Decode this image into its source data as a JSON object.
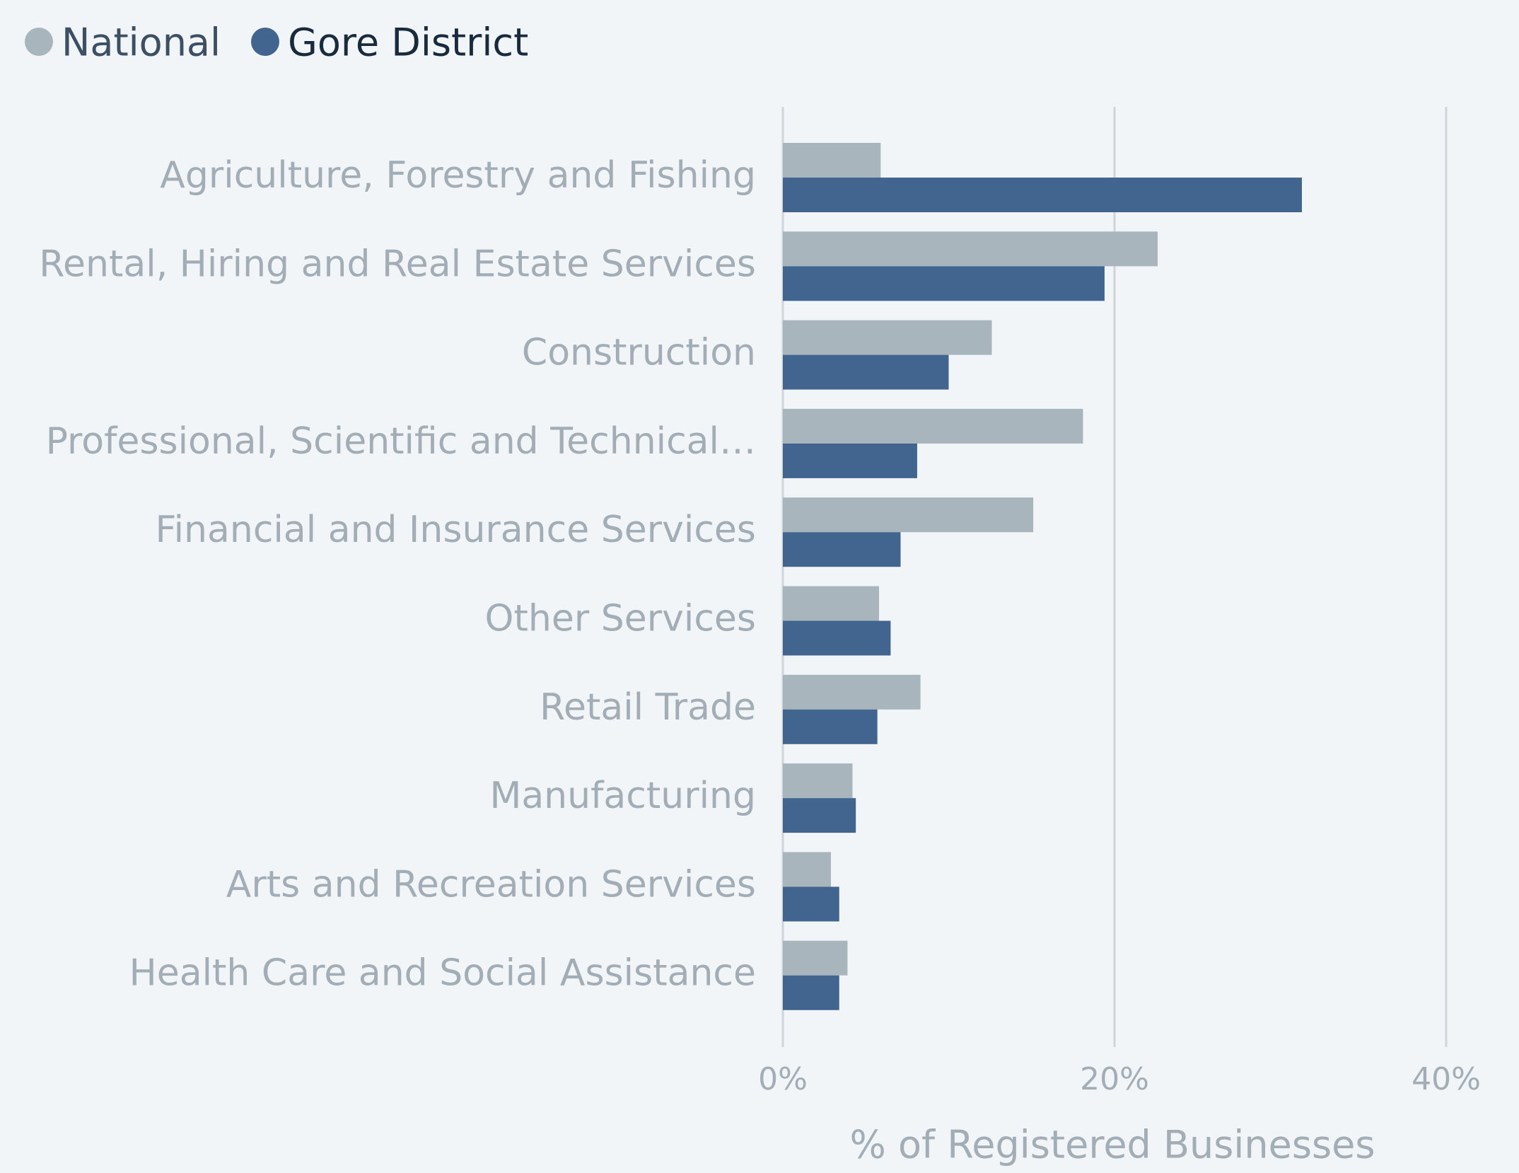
{
  "chart_data": {
    "type": "hbar",
    "categories": [
      "Agriculture, Forestry and Fishing",
      "Rental, Hiring and Real Estate Services",
      "Construction",
      "Professional, Scientific and Technical…",
      "Financial and Insurance Services",
      "Other Services",
      "Retail Trade",
      "Manufacturing",
      "Arts and Recreation Services",
      "Health Care and Social Assistance"
    ],
    "series": [
      {
        "name": "National",
        "color": "#a8b5bc",
        "values": [
          5.9,
          22.6,
          12.6,
          18.1,
          15.1,
          5.8,
          8.3,
          4.2,
          2.9,
          3.9
        ]
      },
      {
        "name": "Gore District",
        "color": "#41658f",
        "values": [
          31.3,
          19.4,
          10.0,
          8.1,
          7.1,
          6.5,
          5.7,
          4.4,
          3.4,
          3.4
        ]
      }
    ],
    "xlabel": "% of Registered Businesses",
    "xlim": [
      0,
      40
    ],
    "xticks": [
      {
        "value": 0,
        "label": "0%"
      },
      {
        "value": 20,
        "label": "20%"
      },
      {
        "value": 40,
        "label": "40%"
      }
    ],
    "grid": true,
    "legend": "top-left"
  }
}
